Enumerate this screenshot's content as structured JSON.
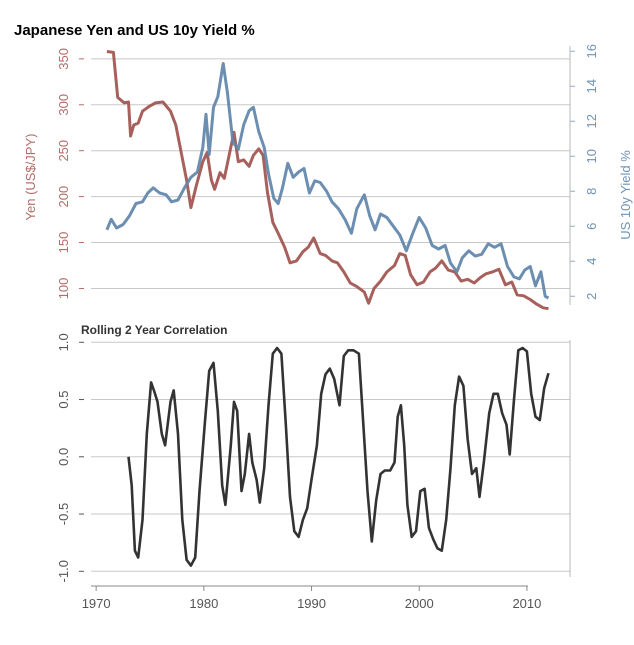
{
  "chart_data": [
    {
      "type": "line",
      "title": "Japanese Yen and US 10y Yield %",
      "grid": true,
      "x_ticks": [
        1970,
        1980,
        1990,
        2000,
        2010
      ],
      "xlim": [
        1968.5,
        2014
      ],
      "left_axis": {
        "label": "Yen (US$/JPY)",
        "ticks": [
          100,
          150,
          200,
          250,
          300,
          350
        ],
        "ylim": [
          82,
          364
        ],
        "color": "#b46c68"
      },
      "right_axis": {
        "label": "US 10y Yield %",
        "ticks": [
          2,
          4,
          6,
          8,
          10,
          12,
          14,
          16
        ],
        "ylim": [
          1.5,
          16.3
        ],
        "color": "#6f93b4"
      },
      "series": [
        {
          "axis": "left",
          "color": "#a0524e",
          "points": [
            [
              1971.0,
              358
            ],
            [
              1971.6,
              357
            ],
            [
              1972.0,
              308
            ],
            [
              1972.6,
              302
            ],
            [
              1973.0,
              303
            ],
            [
              1973.2,
              266
            ],
            [
              1973.5,
              278
            ],
            [
              1973.9,
              280
            ],
            [
              1974.3,
              293
            ],
            [
              1974.9,
              298
            ],
            [
              1975.5,
              302
            ],
            [
              1976.2,
              303
            ],
            [
              1976.9,
              293
            ],
            [
              1977.4,
              278
            ],
            [
              1977.9,
              248
            ],
            [
              1978.4,
              218
            ],
            [
              1978.8,
              188
            ],
            [
              1979.3,
              212
            ],
            [
              1979.9,
              238
            ],
            [
              1980.3,
              248
            ],
            [
              1980.7,
              218
            ],
            [
              1981.0,
              208
            ],
            [
              1981.5,
              226
            ],
            [
              1981.9,
              220
            ],
            [
              1982.4,
              248
            ],
            [
              1982.8,
              270
            ],
            [
              1983.2,
              238
            ],
            [
              1983.7,
              240
            ],
            [
              1984.2,
              233
            ],
            [
              1984.6,
              245
            ],
            [
              1985.1,
              252
            ],
            [
              1985.5,
              245
            ],
            [
              1985.9,
              205
            ],
            [
              1986.4,
              172
            ],
            [
              1986.9,
              160
            ],
            [
              1987.5,
              145
            ],
            [
              1988.0,
              128
            ],
            [
              1988.6,
              130
            ],
            [
              1989.2,
              140
            ],
            [
              1989.7,
              145
            ],
            [
              1990.2,
              155
            ],
            [
              1990.8,
              138
            ],
            [
              1991.3,
              136
            ],
            [
              1991.9,
              130
            ],
            [
              1992.4,
              128
            ],
            [
              1993.0,
              118
            ],
            [
              1993.6,
              106
            ],
            [
              1994.2,
              102
            ],
            [
              1994.9,
              96
            ],
            [
              1995.3,
              84
            ],
            [
              1995.8,
              100
            ],
            [
              1996.4,
              108
            ],
            [
              1997.0,
              118
            ],
            [
              1997.7,
              125
            ],
            [
              1998.2,
              138
            ],
            [
              1998.7,
              136
            ],
            [
              1999.2,
              115
            ],
            [
              1999.8,
              104
            ],
            [
              2000.4,
              107
            ],
            [
              2001.0,
              118
            ],
            [
              2001.5,
              122
            ],
            [
              2002.1,
              130
            ],
            [
              2002.7,
              120
            ],
            [
              2003.3,
              118
            ],
            [
              2003.9,
              108
            ],
            [
              2004.5,
              110
            ],
            [
              2005.1,
              106
            ],
            [
              2005.7,
              112
            ],
            [
              2006.2,
              116
            ],
            [
              2006.8,
              118
            ],
            [
              2007.4,
              121
            ],
            [
              2008.0,
              104
            ],
            [
              2008.6,
              107
            ],
            [
              2009.1,
              93
            ],
            [
              2009.7,
              92
            ],
            [
              2010.3,
              88
            ],
            [
              2010.9,
              83
            ],
            [
              2011.5,
              79
            ],
            [
              2012.0,
              78
            ]
          ]
        },
        {
          "axis": "right",
          "color": "#5f86aa",
          "points": [
            [
              1971.0,
              5.8
            ],
            [
              1971.4,
              6.4
            ],
            [
              1971.9,
              5.9
            ],
            [
              1972.5,
              6.1
            ],
            [
              1973.1,
              6.6
            ],
            [
              1973.7,
              7.3
            ],
            [
              1974.3,
              7.4
            ],
            [
              1974.8,
              7.9
            ],
            [
              1975.3,
              8.2
            ],
            [
              1975.9,
              7.9
            ],
            [
              1976.5,
              7.8
            ],
            [
              1977.0,
              7.4
            ],
            [
              1977.6,
              7.5
            ],
            [
              1978.2,
              8.2
            ],
            [
              1978.8,
              8.8
            ],
            [
              1979.4,
              9.1
            ],
            [
              1979.9,
              10.5
            ],
            [
              1980.2,
              12.4
            ],
            [
              1980.5,
              10.1
            ],
            [
              1980.9,
              12.8
            ],
            [
              1981.3,
              13.4
            ],
            [
              1981.8,
              15.3
            ],
            [
              1982.2,
              13.6
            ],
            [
              1982.7,
              10.8
            ],
            [
              1983.2,
              10.4
            ],
            [
              1983.7,
              11.8
            ],
            [
              1984.2,
              12.6
            ],
            [
              1984.6,
              12.8
            ],
            [
              1985.1,
              11.4
            ],
            [
              1985.6,
              10.5
            ],
            [
              1986.0,
              9.0
            ],
            [
              1986.5,
              7.6
            ],
            [
              1986.9,
              7.3
            ],
            [
              1987.3,
              8.2
            ],
            [
              1987.8,
              9.6
            ],
            [
              1988.3,
              8.8
            ],
            [
              1988.8,
              9.1
            ],
            [
              1989.3,
              9.3
            ],
            [
              1989.8,
              7.9
            ],
            [
              1990.3,
              8.6
            ],
            [
              1990.8,
              8.5
            ],
            [
              1991.4,
              8.0
            ],
            [
              1991.9,
              7.4
            ],
            [
              1992.5,
              7.0
            ],
            [
              1993.1,
              6.4
            ],
            [
              1993.7,
              5.6
            ],
            [
              1994.2,
              7.0
            ],
            [
              1994.9,
              7.8
            ],
            [
              1995.4,
              6.6
            ],
            [
              1995.9,
              5.8
            ],
            [
              1996.4,
              6.7
            ],
            [
              1997.0,
              6.5
            ],
            [
              1997.6,
              6.0
            ],
            [
              1998.2,
              5.5
            ],
            [
              1998.8,
              4.6
            ],
            [
              1999.4,
              5.6
            ],
            [
              2000.0,
              6.5
            ],
            [
              2000.6,
              5.9
            ],
            [
              2001.2,
              4.9
            ],
            [
              2001.8,
              4.7
            ],
            [
              2002.4,
              4.9
            ],
            [
              2002.9,
              3.9
            ],
            [
              2003.5,
              3.4
            ],
            [
              2004.0,
              4.2
            ],
            [
              2004.6,
              4.6
            ],
            [
              2005.2,
              4.3
            ],
            [
              2005.8,
              4.4
            ],
            [
              2006.4,
              5.0
            ],
            [
              2007.0,
              4.8
            ],
            [
              2007.6,
              5.0
            ],
            [
              2008.2,
              3.7
            ],
            [
              2008.8,
              3.1
            ],
            [
              2009.3,
              3.0
            ],
            [
              2009.8,
              3.5
            ],
            [
              2010.3,
              3.7
            ],
            [
              2010.8,
              2.6
            ],
            [
              2011.3,
              3.4
            ],
            [
              2011.7,
              2.0
            ],
            [
              2012.0,
              1.9
            ]
          ]
        }
      ]
    },
    {
      "type": "line",
      "title": "Rolling 2 Year Correlation",
      "xlabel": "",
      "ylabel": "",
      "grid": true,
      "x_ticks": [
        1970,
        1980,
        1990,
        2000,
        2010
      ],
      "xlim": [
        1968.5,
        2014
      ],
      "y_ticks": [
        -1.0,
        -0.5,
        0.0,
        0.5,
        1.0
      ],
      "ylim": [
        -1.05,
        1.02
      ],
      "series": [
        {
          "color": "#333333",
          "points": [
            [
              1973.0,
              0.0
            ],
            [
              1973.3,
              -0.25
            ],
            [
              1973.6,
              -0.82
            ],
            [
              1973.9,
              -0.88
            ],
            [
              1974.3,
              -0.55
            ],
            [
              1974.7,
              0.2
            ],
            [
              1975.1,
              0.65
            ],
            [
              1975.4,
              0.57
            ],
            [
              1975.7,
              0.48
            ],
            [
              1976.1,
              0.2
            ],
            [
              1976.4,
              0.1
            ],
            [
              1976.9,
              0.48
            ],
            [
              1977.2,
              0.58
            ],
            [
              1977.6,
              0.2
            ],
            [
              1978.0,
              -0.55
            ],
            [
              1978.4,
              -0.9
            ],
            [
              1978.8,
              -0.95
            ],
            [
              1979.2,
              -0.88
            ],
            [
              1979.6,
              -0.3
            ],
            [
              1980.1,
              0.3
            ],
            [
              1980.5,
              0.75
            ],
            [
              1980.9,
              0.82
            ],
            [
              1981.3,
              0.4
            ],
            [
              1981.7,
              -0.25
            ],
            [
              1982.0,
              -0.42
            ],
            [
              1982.5,
              0.1
            ],
            [
              1982.8,
              0.48
            ],
            [
              1983.1,
              0.4
            ],
            [
              1983.5,
              -0.3
            ],
            [
              1983.8,
              -0.15
            ],
            [
              1984.2,
              0.2
            ],
            [
              1984.5,
              -0.05
            ],
            [
              1984.9,
              -0.2
            ],
            [
              1985.2,
              -0.4
            ],
            [
              1985.6,
              -0.1
            ],
            [
              1986.0,
              0.45
            ],
            [
              1986.4,
              0.9
            ],
            [
              1986.8,
              0.95
            ],
            [
              1987.2,
              0.9
            ],
            [
              1987.6,
              0.3
            ],
            [
              1988.0,
              -0.35
            ],
            [
              1988.4,
              -0.65
            ],
            [
              1988.8,
              -0.7
            ],
            [
              1989.2,
              -0.55
            ],
            [
              1989.6,
              -0.45
            ],
            [
              1990.0,
              -0.2
            ],
            [
              1990.5,
              0.1
            ],
            [
              1990.9,
              0.55
            ],
            [
              1991.3,
              0.72
            ],
            [
              1991.7,
              0.77
            ],
            [
              1992.1,
              0.68
            ],
            [
              1992.6,
              0.45
            ],
            [
              1993.0,
              0.88
            ],
            [
              1993.4,
              0.93
            ],
            [
              1993.9,
              0.93
            ],
            [
              1994.4,
              0.9
            ],
            [
              1994.8,
              0.3
            ],
            [
              1995.2,
              -0.3
            ],
            [
              1995.6,
              -0.74
            ],
            [
              1996.0,
              -0.38
            ],
            [
              1996.4,
              -0.15
            ],
            [
              1996.8,
              -0.12
            ],
            [
              1997.3,
              -0.12
            ],
            [
              1997.7,
              -0.05
            ],
            [
              1998.0,
              0.35
            ],
            [
              1998.3,
              0.45
            ],
            [
              1998.6,
              0.1
            ],
            [
              1998.9,
              -0.42
            ],
            [
              1999.3,
              -0.7
            ],
            [
              1999.7,
              -0.65
            ],
            [
              2000.1,
              -0.3
            ],
            [
              2000.5,
              -0.28
            ],
            [
              2000.9,
              -0.62
            ],
            [
              2001.3,
              -0.72
            ],
            [
              2001.7,
              -0.8
            ],
            [
              2002.1,
              -0.82
            ],
            [
              2002.5,
              -0.55
            ],
            [
              2002.9,
              -0.1
            ],
            [
              2003.3,
              0.45
            ],
            [
              2003.7,
              0.7
            ],
            [
              2004.1,
              0.62
            ],
            [
              2004.5,
              0.15
            ],
            [
              2004.9,
              -0.15
            ],
            [
              2005.3,
              -0.1
            ],
            [
              2005.6,
              -0.35
            ],
            [
              2006.0,
              -0.05
            ],
            [
              2006.5,
              0.38
            ],
            [
              2006.9,
              0.55
            ],
            [
              2007.3,
              0.55
            ],
            [
              2007.7,
              0.38
            ],
            [
              2008.1,
              0.28
            ],
            [
              2008.4,
              0.02
            ],
            [
              2008.8,
              0.5
            ],
            [
              2009.2,
              0.93
            ],
            [
              2009.6,
              0.95
            ],
            [
              2010.0,
              0.92
            ],
            [
              2010.4,
              0.55
            ],
            [
              2010.8,
              0.35
            ],
            [
              2011.2,
              0.32
            ],
            [
              2011.6,
              0.6
            ],
            [
              2012.0,
              0.73
            ]
          ]
        }
      ]
    }
  ]
}
